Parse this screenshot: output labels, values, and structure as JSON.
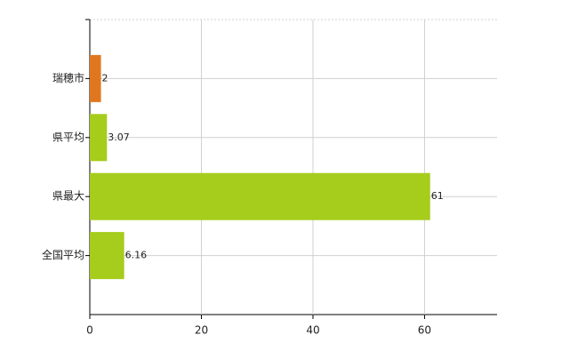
{
  "chart_data": {
    "type": "hbar",
    "categories": [
      "瑞穂市",
      "県平均",
      "県最大",
      "全国平均"
    ],
    "values": [
      2,
      3.07,
      61,
      6.16
    ],
    "colors": [
      "#e0771e",
      "#a6cc1c",
      "#a6cc1c",
      "#a6cc1c"
    ],
    "xlim": [
      0,
      73
    ],
    "xticks": [
      0,
      20,
      40,
      60
    ],
    "grid": true
  }
}
